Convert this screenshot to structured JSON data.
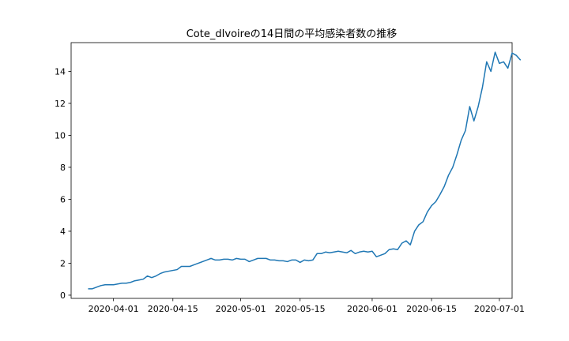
{
  "chart_data": {
    "type": "line",
    "title": "Cote_dIvoireの14日間の平均感染者数の推移",
    "xlabel": "",
    "ylabel": "",
    "xlim": [
      "2020-03-22",
      "2020-07-04"
    ],
    "ylim": [
      -0.2,
      15.8
    ],
    "x_ticks": [
      "2020-04-01",
      "2020-04-15",
      "2020-05-01",
      "2020-05-15",
      "2020-06-01",
      "2020-06-15",
      "2020-07-01"
    ],
    "y_ticks": [
      0,
      2,
      4,
      6,
      8,
      10,
      12,
      14
    ],
    "grid": false,
    "line_color": "#1f77b4",
    "series": [
      {
        "x_start": "2020-03-26",
        "values": [
          0.4,
          0.4,
          0.5,
          0.6,
          0.65,
          0.65,
          0.65,
          0.7,
          0.75,
          0.75,
          0.8,
          0.9,
          0.95,
          1.0,
          1.2,
          1.1,
          1.2,
          1.35,
          1.45,
          1.5,
          1.55,
          1.6,
          1.8,
          1.8,
          1.8,
          1.9,
          2.0,
          2.1,
          2.2,
          2.3,
          2.2,
          2.2,
          2.25,
          2.25,
          2.2,
          2.3,
          2.25,
          2.25,
          2.1,
          2.2,
          2.3,
          2.3,
          2.3,
          2.2,
          2.2,
          2.15,
          2.15,
          2.1,
          2.2,
          2.2,
          2.05,
          2.2,
          2.15,
          2.2,
          2.6,
          2.6,
          2.7,
          2.65,
          2.7,
          2.75,
          2.7,
          2.65,
          2.8,
          2.6,
          2.7,
          2.75,
          2.7,
          2.75,
          2.4,
          2.5,
          2.6,
          2.85,
          2.9,
          2.85,
          3.25,
          3.4,
          3.15,
          4.0,
          4.4,
          4.6,
          5.2,
          5.6,
          5.85,
          6.3,
          6.8,
          7.5,
          8.0,
          8.8,
          9.7,
          10.3,
          11.8,
          10.9,
          11.8,
          13.0,
          14.6,
          14.0,
          15.2,
          14.5,
          14.6,
          14.2,
          15.15,
          15.0,
          14.7
        ]
      }
    ]
  }
}
